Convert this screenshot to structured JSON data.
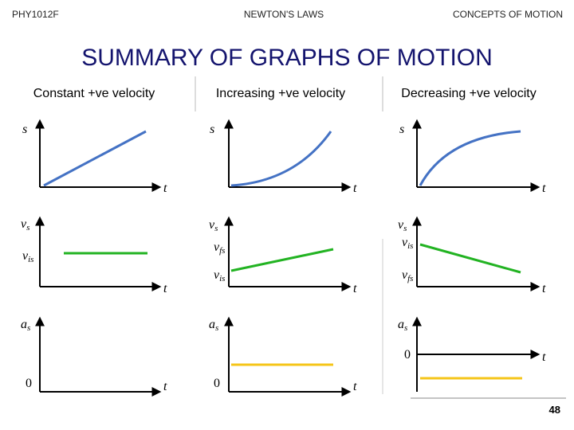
{
  "header": {
    "left": "PHY1012F",
    "center": "NEWTON'S LAWS",
    "right": "CONCEPTS OF MOTION"
  },
  "title": "SUMMARY OF GRAPHS OF MOTION",
  "columns": [
    {
      "heading": "Constant +ve velocity",
      "position": {
        "y": "s",
        "x": "t"
      },
      "velocity": {
        "y": {
          "main": "v",
          "sub": "s"
        },
        "x": "t",
        "levels": [
          {
            "main": "v",
            "sub": "is"
          }
        ]
      },
      "acceleration": {
        "y": {
          "main": "a",
          "sub": "s"
        },
        "x": "t",
        "zero": "0"
      }
    },
    {
      "heading": "Increasing +ve velocity",
      "position": {
        "y": "s",
        "x": "t"
      },
      "velocity": {
        "y": {
          "main": "v",
          "sub": "s"
        },
        "x": "t",
        "levels": [
          {
            "main": "v",
            "sub": "fs"
          },
          {
            "main": "v",
            "sub": "is"
          }
        ]
      },
      "acceleration": {
        "y": {
          "main": "a",
          "sub": "s"
        },
        "x": "t",
        "zero": "0"
      }
    },
    {
      "heading": "Decreasing +ve velocity",
      "position": {
        "y": "s",
        "x": "t"
      },
      "velocity": {
        "y": {
          "main": "v",
          "sub": "s"
        },
        "x": "t",
        "levels": [
          {
            "main": "v",
            "sub": "is"
          },
          {
            "main": "v",
            "sub": "fs"
          }
        ]
      },
      "acceleration": {
        "y": {
          "main": "a",
          "sub": "s"
        },
        "x": "t",
        "zero": "0"
      }
    }
  ],
  "page_number": "48"
}
